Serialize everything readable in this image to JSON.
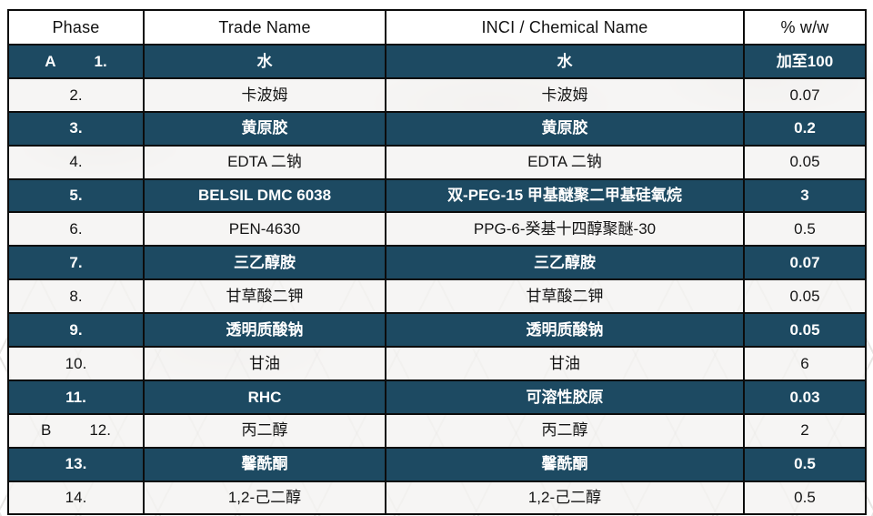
{
  "colors": {
    "dark_row_bg": "#1d4a62",
    "border": "#0c0c0c",
    "dark_row_text": "#ffffff",
    "light_row_text": "#141414"
  },
  "table": {
    "headers": [
      "Phase",
      "Trade Name",
      "INCI / Chemical Name",
      "% w/w"
    ],
    "rows": [
      {
        "phase": "A",
        "num": "1.",
        "trade": "水",
        "inci": "水",
        "pct": "加至100",
        "dark": true
      },
      {
        "phase": "",
        "num": "2.",
        "trade": "卡波姆",
        "inci": "卡波姆",
        "pct": "0.07",
        "dark": false
      },
      {
        "phase": "",
        "num": "3.",
        "trade": "黄原胶",
        "inci": "黄原胶",
        "pct": "0.2",
        "dark": true
      },
      {
        "phase": "",
        "num": "4.",
        "trade": "EDTA 二钠",
        "inci": "EDTA 二钠",
        "pct": "0.05",
        "dark": false
      },
      {
        "phase": "",
        "num": "5.",
        "trade": "BELSIL DMC 6038",
        "inci": "双-PEG-15 甲基醚聚二甲基硅氧烷",
        "pct": "3",
        "dark": true
      },
      {
        "phase": "",
        "num": "6.",
        "trade": "PEN-4630",
        "inci": "PPG-6-癸基十四醇聚醚-30",
        "pct": "0.5",
        "dark": false
      },
      {
        "phase": "",
        "num": "7.",
        "trade": "三乙醇胺",
        "inci": "三乙醇胺",
        "pct": "0.07",
        "dark": true
      },
      {
        "phase": "",
        "num": "8.",
        "trade": "甘草酸二钾",
        "inci": "甘草酸二钾",
        "pct": "0.05",
        "dark": false
      },
      {
        "phase": "",
        "num": "9.",
        "trade": "透明质酸钠",
        "inci": "透明质酸钠",
        "pct": "0.05",
        "dark": true
      },
      {
        "phase": "",
        "num": "10.",
        "trade": "甘油",
        "inci": "甘油",
        "pct": "6",
        "dark": false
      },
      {
        "phase": "",
        "num": "11.",
        "trade": "RHC",
        "inci": "可溶性胶原",
        "pct": "0.03",
        "dark": true
      },
      {
        "phase": "B",
        "num": "12.",
        "trade": "丙二醇",
        "inci": "丙二醇",
        "pct": "2",
        "dark": false
      },
      {
        "phase": "",
        "num": "13.",
        "trade": "馨酰酮",
        "inci": "馨酰酮",
        "pct": "0.5",
        "dark": true
      },
      {
        "phase": "",
        "num": "14.",
        "trade": "1,2-己二醇",
        "inci": "1,2-己二醇",
        "pct": "0.5",
        "dark": false
      }
    ]
  }
}
